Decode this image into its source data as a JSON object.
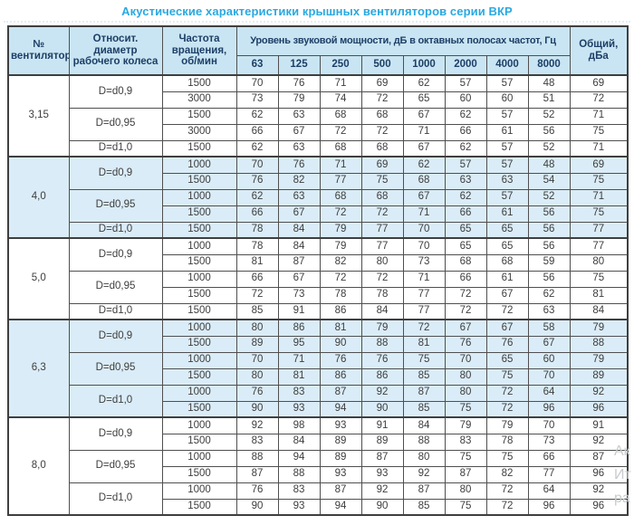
{
  "title": "Акустические характеристики крышных вентиляторов серии ВКР",
  "colors": {
    "title_accent": "#29a9e0",
    "header_bg": "#c9e5f3",
    "header_text": "#1d3e66",
    "shaded_row_bg": "#daecf7",
    "border": "#3f3f3f",
    "cell_text": "#3e3e3e"
  },
  "header": {
    "fan_no": "№ вентилятора",
    "rel_diameter": "Относит. диаметр рабочего колеса",
    "speed": "Частота вращения, об/мин",
    "spl_group": "Уровень звуковой мощности, дБ в октавных полосах частот, Гц",
    "freq_bands": [
      "63",
      "125",
      "250",
      "500",
      "1000",
      "2000",
      "4000",
      "8000"
    ],
    "total": "Общий, дБа"
  },
  "table": {
    "sections": [
      {
        "fan": "3,15",
        "shaded": false,
        "groups": [
          {
            "diameter": "D=d0,9",
            "rows": [
              {
                "speed": "1500",
                "levels": [
                  "70",
                  "76",
                  "71",
                  "69",
                  "62",
                  "57",
                  "57",
                  "48"
                ],
                "total": "69"
              },
              {
                "speed": "3000",
                "levels": [
                  "73",
                  "79",
                  "74",
                  "72",
                  "65",
                  "60",
                  "60",
                  "51"
                ],
                "total": "72"
              }
            ]
          },
          {
            "diameter": "D=d0,95",
            "rows": [
              {
                "speed": "1500",
                "levels": [
                  "62",
                  "63",
                  "68",
                  "68",
                  "67",
                  "62",
                  "57",
                  "52"
                ],
                "total": "71"
              },
              {
                "speed": "3000",
                "levels": [
                  "66",
                  "67",
                  "72",
                  "72",
                  "71",
                  "66",
                  "61",
                  "56"
                ],
                "total": "75"
              }
            ]
          },
          {
            "diameter": "D=d1,0",
            "rows": [
              {
                "speed": "1500",
                "levels": [
                  "62",
                  "63",
                  "68",
                  "68",
                  "67",
                  "62",
                  "57",
                  "52"
                ],
                "total": "71"
              }
            ]
          }
        ]
      },
      {
        "fan": "4,0",
        "shaded": true,
        "groups": [
          {
            "diameter": "D=d0,9",
            "rows": [
              {
                "speed": "1000",
                "levels": [
                  "70",
                  "76",
                  "71",
                  "69",
                  "62",
                  "57",
                  "57",
                  "48"
                ],
                "total": "69"
              },
              {
                "speed": "1500",
                "levels": [
                  "76",
                  "82",
                  "77",
                  "75",
                  "68",
                  "63",
                  "63",
                  "54"
                ],
                "total": "75"
              }
            ]
          },
          {
            "diameter": "D=d0,95",
            "rows": [
              {
                "speed": "1000",
                "levels": [
                  "62",
                  "63",
                  "68",
                  "68",
                  "67",
                  "62",
                  "57",
                  "52"
                ],
                "total": "71"
              },
              {
                "speed": "1500",
                "levels": [
                  "66",
                  "67",
                  "72",
                  "72",
                  "71",
                  "66",
                  "61",
                  "56"
                ],
                "total": "75"
              }
            ]
          },
          {
            "diameter": "D=d1,0",
            "rows": [
              {
                "speed": "1500",
                "levels": [
                  "78",
                  "84",
                  "79",
                  "77",
                  "70",
                  "65",
                  "65",
                  "56"
                ],
                "total": "77"
              }
            ]
          }
        ]
      },
      {
        "fan": "5,0",
        "shaded": false,
        "groups": [
          {
            "diameter": "D=d0,9",
            "rows": [
              {
                "speed": "1000",
                "levels": [
                  "78",
                  "84",
                  "79",
                  "77",
                  "70",
                  "65",
                  "65",
                  "56"
                ],
                "total": "77"
              },
              {
                "speed": "1500",
                "levels": [
                  "81",
                  "87",
                  "82",
                  "80",
                  "73",
                  "68",
                  "68",
                  "59"
                ],
                "total": "80"
              }
            ]
          },
          {
            "diameter": "D=d0,95",
            "rows": [
              {
                "speed": "1000",
                "levels": [
                  "66",
                  "67",
                  "72",
                  "72",
                  "71",
                  "66",
                  "61",
                  "56"
                ],
                "total": "75"
              },
              {
                "speed": "1500",
                "levels": [
                  "72",
                  "73",
                  "78",
                  "78",
                  "77",
                  "72",
                  "67",
                  "62"
                ],
                "total": "81"
              }
            ]
          },
          {
            "diameter": "D=d1,0",
            "rows": [
              {
                "speed": "1500",
                "levels": [
                  "85",
                  "91",
                  "86",
                  "84",
                  "77",
                  "72",
                  "72",
                  "63"
                ],
                "total": "84"
              }
            ]
          }
        ]
      },
      {
        "fan": "6,3",
        "shaded": true,
        "groups": [
          {
            "diameter": "D=d0,9",
            "rows": [
              {
                "speed": "1000",
                "levels": [
                  "80",
                  "86",
                  "81",
                  "79",
                  "72",
                  "67",
                  "67",
                  "58"
                ],
                "total": "79"
              },
              {
                "speed": "1500",
                "levels": [
                  "89",
                  "95",
                  "90",
                  "88",
                  "81",
                  "76",
                  "76",
                  "67"
                ],
                "total": "88"
              }
            ]
          },
          {
            "diameter": "D=d0,95",
            "rows": [
              {
                "speed": "1000",
                "levels": [
                  "70",
                  "71",
                  "76",
                  "76",
                  "75",
                  "70",
                  "65",
                  "60"
                ],
                "total": "79"
              },
              {
                "speed": "1500",
                "levels": [
                  "80",
                  "81",
                  "86",
                  "86",
                  "85",
                  "80",
                  "75",
                  "70"
                ],
                "total": "89"
              }
            ]
          },
          {
            "diameter": "D=d1,0",
            "rows": [
              {
                "speed": "1000",
                "levels": [
                  "76",
                  "83",
                  "87",
                  "92",
                  "87",
                  "80",
                  "72",
                  "64"
                ],
                "total": "92"
              },
              {
                "speed": "1500",
                "levels": [
                  "90",
                  "93",
                  "94",
                  "90",
                  "85",
                  "75",
                  "72",
                  "96"
                ],
                "total": "96"
              }
            ]
          }
        ]
      },
      {
        "fan": "8,0",
        "shaded": false,
        "groups": [
          {
            "diameter": "D=d0,9",
            "rows": [
              {
                "speed": "1000",
                "levels": [
                  "92",
                  "98",
                  "93",
                  "91",
                  "84",
                  "79",
                  "79",
                  "70"
                ],
                "total": "91"
              },
              {
                "speed": "1500",
                "levels": [
                  "83",
                  "84",
                  "89",
                  "89",
                  "88",
                  "83",
                  "78",
                  "73"
                ],
                "total": "92"
              }
            ]
          },
          {
            "diameter": "D=d0,95",
            "rows": [
              {
                "speed": "1000",
                "levels": [
                  "88",
                  "94",
                  "89",
                  "87",
                  "80",
                  "75",
                  "75",
                  "66"
                ],
                "total": "87"
              },
              {
                "speed": "1500",
                "levels": [
                  "87",
                  "88",
                  "93",
                  "93",
                  "92",
                  "87",
                  "82",
                  "77"
                ],
                "total": "96"
              }
            ]
          },
          {
            "diameter": "D=d1,0",
            "rows": [
              {
                "speed": "1000",
                "levels": [
                  "76",
                  "83",
                  "87",
                  "92",
                  "87",
                  "80",
                  "72",
                  "64"
                ],
                "total": "92"
              },
              {
                "speed": "1500",
                "levels": [
                  "90",
                  "93",
                  "94",
                  "90",
                  "85",
                  "75",
                  "72",
                  "96"
                ],
                "total": "96"
              }
            ]
          }
        ]
      }
    ]
  },
  "watermark": "Ак\nИт\nра"
}
